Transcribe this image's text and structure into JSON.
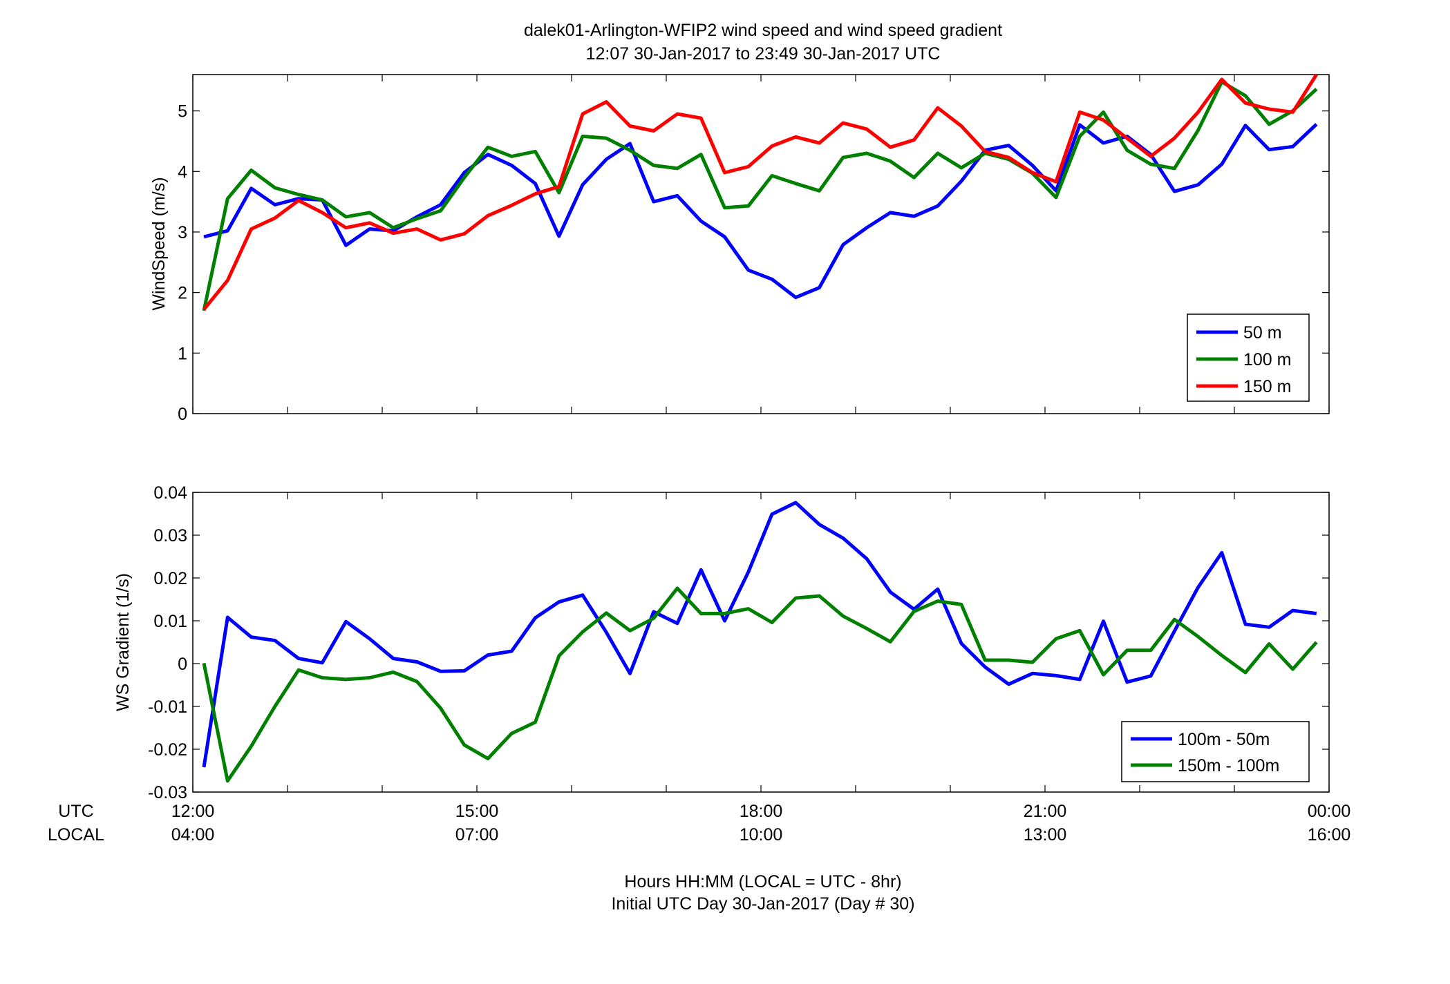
{
  "title": {
    "line1": "dalek01-Arlington-WFIP2  wind speed and wind speed gradient",
    "line2": "12:07 30-Jan-2017 to 23:49 30-Jan-2017  UTC"
  },
  "xaxis": {
    "row_label_utc": "UTC",
    "row_label_local": "LOCAL",
    "label_line1": "Hours HH:MM  (LOCAL = UTC - 8hr)",
    "label_line2": "Initial UTC Day 30-Jan-2017 (Day # 30)",
    "utc_ticks": [
      "12:00",
      "15:00",
      "18:00",
      "21:00",
      "00:00"
    ],
    "local_ticks": [
      "04:00",
      "07:00",
      "10:00",
      "13:00",
      "16:00"
    ]
  },
  "chart_data": [
    {
      "type": "line",
      "ylabel": "WindSpeed (m/s)",
      "xlim": [
        12.0,
        24.0
      ],
      "ylim": [
        0,
        5.6
      ],
      "yticks": [
        "0",
        "1",
        "2",
        "3",
        "4",
        "5"
      ],
      "legend": "bottom-right",
      "x": [
        12.117,
        12.367,
        12.617,
        12.867,
        13.117,
        13.367,
        13.617,
        13.867,
        14.117,
        14.367,
        14.617,
        14.867,
        15.117,
        15.367,
        15.617,
        15.867,
        16.117,
        16.367,
        16.617,
        16.867,
        17.117,
        17.367,
        17.617,
        17.867,
        18.117,
        18.367,
        18.617,
        18.867,
        19.117,
        19.367,
        19.617,
        19.867,
        20.117,
        20.367,
        20.617,
        20.867,
        21.117,
        21.367,
        21.617,
        21.867,
        22.117,
        22.367,
        22.617,
        22.867,
        23.117,
        23.367,
        23.617,
        23.867
      ],
      "series": [
        {
          "name": "50 m",
          "color": "#0000ff",
          "values": [
            2.92,
            3.02,
            3.72,
            3.45,
            3.55,
            3.53,
            2.78,
            3.05,
            3.02,
            3.25,
            3.45,
            3.98,
            4.28,
            4.1,
            3.8,
            2.93,
            3.78,
            4.2,
            4.46,
            3.5,
            3.6,
            3.18,
            2.92,
            2.37,
            2.22,
            1.92,
            2.08,
            2.79,
            3.07,
            3.32,
            3.26,
            3.43,
            3.84,
            4.35,
            4.43,
            4.1,
            3.68,
            4.77,
            4.47,
            4.58,
            4.28,
            3.67,
            3.78,
            4.12,
            4.76,
            4.36,
            4.41,
            4.78
          ]
        },
        {
          "name": "100 m",
          "color": "#008000",
          "values": [
            1.7,
            3.55,
            4.02,
            3.73,
            3.62,
            3.53,
            3.25,
            3.32,
            3.07,
            3.22,
            3.35,
            3.9,
            4.4,
            4.25,
            4.33,
            3.65,
            4.58,
            4.55,
            4.35,
            4.1,
            4.05,
            4.28,
            3.4,
            3.43,
            3.93,
            3.8,
            3.68,
            4.23,
            4.3,
            4.17,
            3.9,
            4.3,
            4.06,
            4.3,
            4.2,
            3.97,
            3.57,
            4.58,
            4.98,
            4.35,
            4.12,
            4.05,
            4.68,
            5.48,
            5.25,
            4.78,
            5.0,
            5.36
          ]
        },
        {
          "name": "150 m",
          "color": "#ff0000",
          "values": [
            1.72,
            2.2,
            3.05,
            3.23,
            3.52,
            3.32,
            3.07,
            3.15,
            2.98,
            3.05,
            2.87,
            2.97,
            3.27,
            3.44,
            3.63,
            3.75,
            4.95,
            5.15,
            4.75,
            4.67,
            4.95,
            4.88,
            3.98,
            4.08,
            4.42,
            4.57,
            4.47,
            4.8,
            4.7,
            4.4,
            4.52,
            5.05,
            4.75,
            4.33,
            4.23,
            3.98,
            3.83,
            4.98,
            4.85,
            4.55,
            4.25,
            4.55,
            4.98,
            5.52,
            5.13,
            5.03,
            4.98,
            5.62
          ]
        }
      ]
    },
    {
      "type": "line",
      "ylabel": "WS Gradient (1/s)",
      "xlim": [
        12.0,
        24.0
      ],
      "ylim": [
        -0.03,
        0.04
      ],
      "yticks": [
        "-0.03",
        "-0.02",
        "-0.01",
        "0",
        "0.01",
        "0.02",
        "0.03",
        "0.04"
      ],
      "legend": "bottom-right",
      "x": [
        12.117,
        12.367,
        12.617,
        12.867,
        13.117,
        13.367,
        13.617,
        13.867,
        14.117,
        14.367,
        14.617,
        14.867,
        15.117,
        15.367,
        15.617,
        15.867,
        16.117,
        16.367,
        16.617,
        16.867,
        17.117,
        17.367,
        17.617,
        17.867,
        18.117,
        18.367,
        18.617,
        18.867,
        19.117,
        19.367,
        19.617,
        19.867,
        20.117,
        20.367,
        20.617,
        20.867,
        21.117,
        21.367,
        21.617,
        21.867,
        22.117,
        22.367,
        22.617,
        22.867,
        23.117,
        23.367,
        23.617,
        23.867
      ],
      "series": [
        {
          "name": "100m - 50m",
          "color": "#0000ff",
          "values": [
            -0.0242,
            0.0108,
            0.0062,
            0.0054,
            0.0012,
            0.0002,
            0.0098,
            0.0058,
            0.0012,
            0.0004,
            -0.0018,
            -0.0017,
            0.002,
            0.0029,
            0.0107,
            0.0144,
            0.016,
            0.0073,
            -0.0023,
            0.0121,
            0.0094,
            0.0219,
            0.01,
            0.0214,
            0.0349,
            0.0376,
            0.0325,
            0.0293,
            0.0245,
            0.0167,
            0.0127,
            0.0174,
            0.0047,
            -0.0008,
            -0.0048,
            -0.0023,
            -0.0028,
            -0.0037,
            0.0099,
            -0.0043,
            -0.0029,
            0.0076,
            0.0178,
            0.0259,
            0.0092,
            0.0085,
            0.0124,
            0.0117
          ]
        },
        {
          "name": "150m - 100m",
          "color": "#008000",
          "values": [
            0.0001,
            -0.0274,
            -0.0193,
            -0.01,
            -0.0015,
            -0.0033,
            -0.0037,
            -0.0033,
            -0.002,
            -0.0042,
            -0.0104,
            -0.019,
            -0.0222,
            -0.0163,
            -0.0137,
            0.0018,
            0.0074,
            0.0118,
            0.0077,
            0.0106,
            0.0176,
            0.0117,
            0.0117,
            0.0128,
            0.0096,
            0.0153,
            0.0158,
            0.0111,
            0.0082,
            0.0051,
            0.0122,
            0.0146,
            0.0138,
            0.0008,
            0.0008,
            0.0003,
            0.0058,
            0.0077,
            -0.0026,
            0.0031,
            0.0031,
            0.0103,
            0.0063,
            0.0019,
            -0.0021,
            0.0046,
            -0.0013,
            0.005
          ]
        }
      ]
    }
  ]
}
